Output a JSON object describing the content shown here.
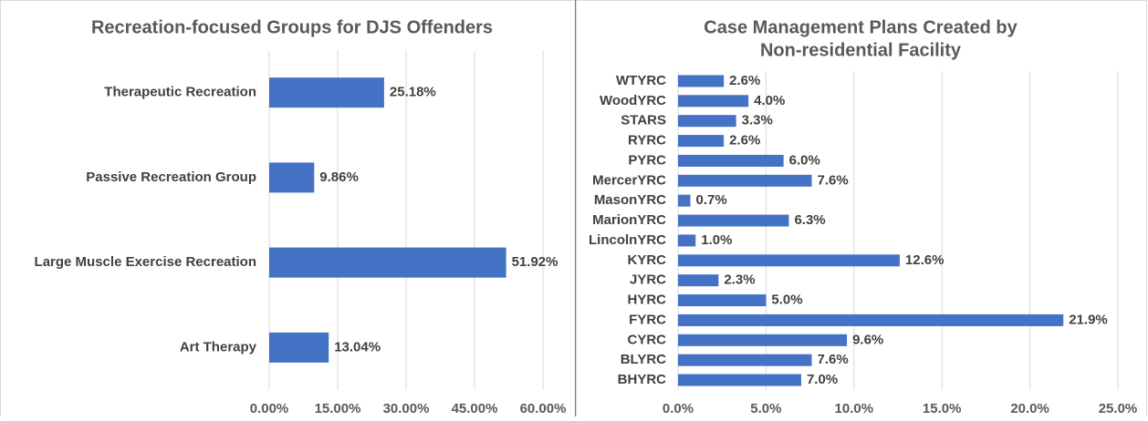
{
  "chart_data": [
    {
      "type": "hbar",
      "title": "Recreation-focused Groups for DJS Offenders",
      "categories": [
        "Therapeutic Recreation",
        "Passive Recreation Group",
        "Large Muscle Exercise Recreation",
        "Art Therapy"
      ],
      "values": [
        25.18,
        9.86,
        51.92,
        13.04
      ],
      "value_labels": [
        "25.18%",
        "9.86%",
        "51.92%",
        "13.04%"
      ],
      "color": "#4472c4",
      "grid": true,
      "xlim": [
        0,
        60
      ],
      "xticks": [
        {
          "value": 0,
          "label": "0.00%"
        },
        {
          "value": 15,
          "label": "15.00%"
        },
        {
          "value": 30,
          "label": "30.00%"
        },
        {
          "value": 45,
          "label": "45.00%"
        },
        {
          "value": 60,
          "label": "60.00%"
        }
      ]
    },
    {
      "type": "hbar",
      "title": [
        "Case Management Plans Created by",
        "Non-residential Facility"
      ],
      "categories": [
        "WTYRC",
        "WoodYRC",
        "STARS",
        "RYRC",
        "PYRC",
        "MercerYRC",
        "MasonYRC",
        "MarionYRC",
        "LincolnYRC",
        "KYRC",
        "JYRC",
        "HYRC",
        "FYRC",
        "CYRC",
        "BLYRC",
        "BHYRC"
      ],
      "values": [
        2.6,
        4.0,
        3.3,
        2.6,
        6.0,
        7.6,
        0.7,
        6.3,
        1.0,
        12.6,
        2.3,
        5.0,
        21.9,
        9.6,
        7.6,
        7.0
      ],
      "value_labels": [
        "2.6%",
        "4.0%",
        "3.3%",
        "2.6%",
        "6.0%",
        "7.6%",
        "0.7%",
        "6.3%",
        "1.0%",
        "12.6%",
        "2.3%",
        "5.0%",
        "21.9%",
        "9.6%",
        "7.6%",
        "7.0%"
      ],
      "color": "#4472c4",
      "grid": true,
      "xlim": [
        0,
        25
      ],
      "xticks": [
        {
          "value": 0,
          "label": "0.0%"
        },
        {
          "value": 5,
          "label": "5.0%"
        },
        {
          "value": 10,
          "label": "10.0%"
        },
        {
          "value": 15,
          "label": "15.0%"
        },
        {
          "value": 20,
          "label": "20.0%"
        },
        {
          "value": 25,
          "label": "25.0%"
        }
      ]
    }
  ]
}
